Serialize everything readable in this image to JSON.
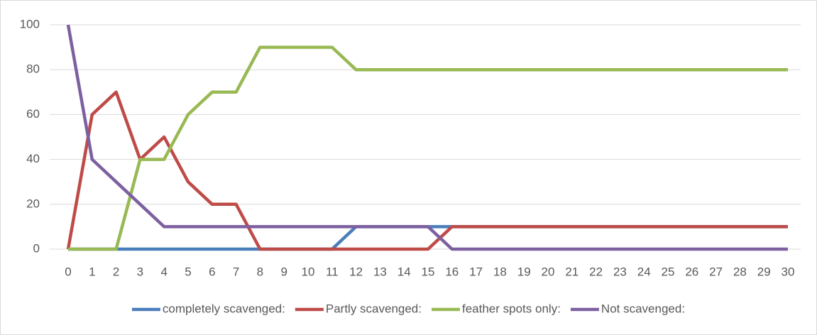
{
  "chart_data": {
    "type": "line",
    "x": [
      0,
      1,
      2,
      3,
      4,
      5,
      6,
      7,
      8,
      9,
      10,
      11,
      12,
      13,
      14,
      15,
      16,
      17,
      18,
      19,
      20,
      21,
      22,
      23,
      24,
      25,
      26,
      27,
      28,
      29,
      30
    ],
    "xlim": [
      0,
      30
    ],
    "ylim": [
      0,
      100
    ],
    "yticks": [
      0,
      20,
      40,
      60,
      80,
      100
    ],
    "grid": true,
    "legend": "bottom",
    "series": [
      {
        "name": "completely scavenged:",
        "color": "#4a7ebb",
        "values": [
          0,
          0,
          0,
          0,
          0,
          0,
          0,
          0,
          0,
          0,
          0,
          0,
          10,
          10,
          10,
          10,
          10,
          10,
          10,
          10,
          10,
          10,
          10,
          10,
          10,
          10,
          10,
          10,
          10,
          10,
          10
        ]
      },
      {
        "name": "Partly scavenged:",
        "color": "#be4b48",
        "values": [
          0,
          60,
          70,
          40,
          50,
          30,
          20,
          20,
          0,
          0,
          0,
          0,
          0,
          0,
          0,
          0,
          10,
          10,
          10,
          10,
          10,
          10,
          10,
          10,
          10,
          10,
          10,
          10,
          10,
          10,
          10
        ]
      },
      {
        "name": "feather spots only:",
        "color": "#98b954",
        "values": [
          0,
          0,
          0,
          40,
          40,
          60,
          70,
          70,
          90,
          90,
          90,
          90,
          80,
          80,
          80,
          80,
          80,
          80,
          80,
          80,
          80,
          80,
          80,
          80,
          80,
          80,
          80,
          80,
          80,
          80,
          80
        ]
      },
      {
        "name": "Not scavenged:",
        "color": "#7d60a0",
        "values": [
          100,
          40,
          30,
          20,
          10,
          10,
          10,
          10,
          10,
          10,
          10,
          10,
          10,
          10,
          10,
          10,
          0,
          0,
          0,
          0,
          0,
          0,
          0,
          0,
          0,
          0,
          0,
          0,
          0,
          0,
          0
        ]
      }
    ]
  }
}
